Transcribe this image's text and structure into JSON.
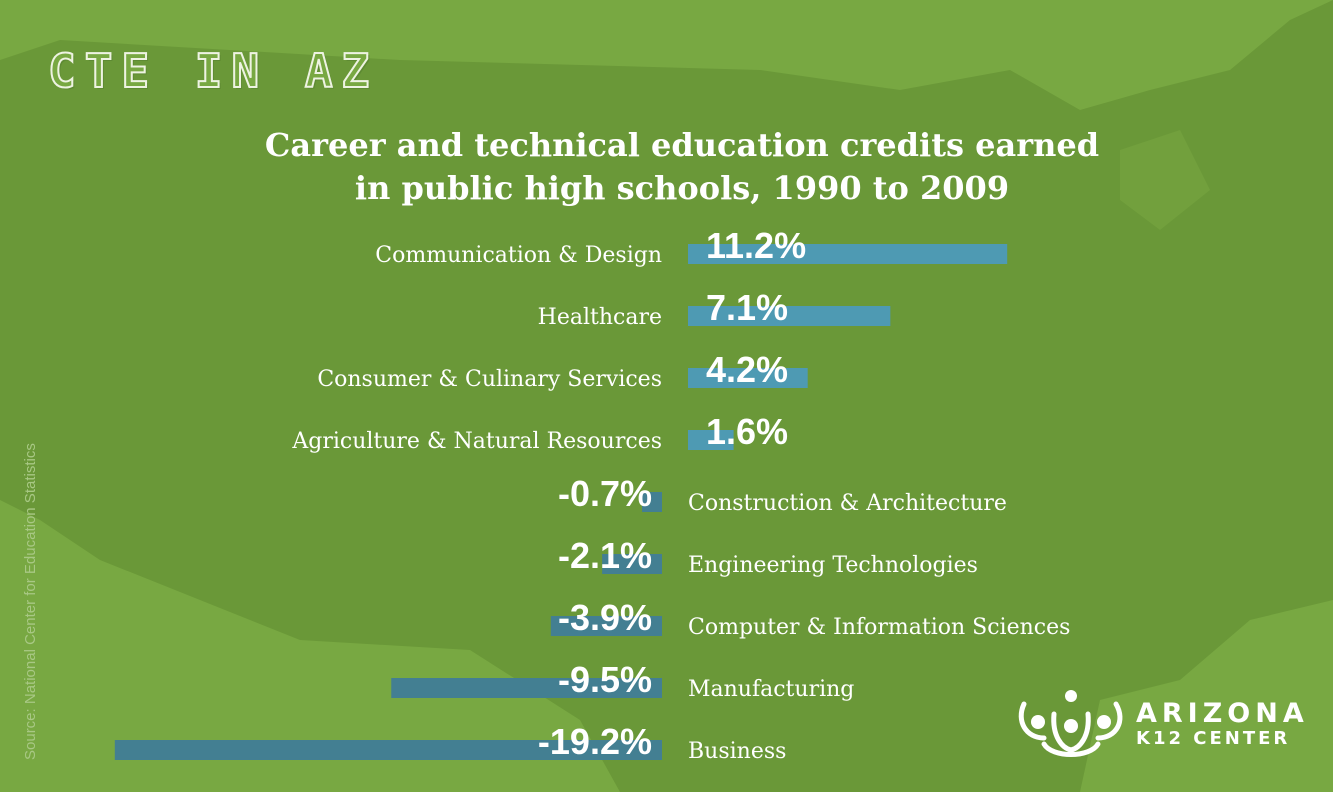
{
  "header": {
    "title": "CTE IN AZ"
  },
  "source_note": "Source: National Center for Education Statistics",
  "logo": {
    "line1": "ARIZONA",
    "line2": "K12 CENTER"
  },
  "colors": {
    "background": "#78a842",
    "map_shape": "#6a9838",
    "positive_bar": "#4e9ab3",
    "negative_bar": "#437f92",
    "text": "#ffffff"
  },
  "chart_data": {
    "type": "bar",
    "orientation": "horizontal",
    "title_lines": [
      "Career and technical education credits earned",
      "in public high schools, 1990 to 2009"
    ],
    "categories": [
      "Communication & Design",
      "Healthcare",
      "Consumer & Culinary Services",
      "Agriculture & Natural Resources",
      "Construction & Architecture",
      "Engineering Technologies",
      "Computer & Information Sciences",
      "Manufacturing",
      "Business"
    ],
    "values": [
      11.2,
      7.1,
      4.2,
      1.6,
      -0.7,
      -2.1,
      -3.9,
      -9.5,
      -19.2
    ],
    "value_labels": [
      "11.2%",
      "7.1%",
      "4.2%",
      "1.6%",
      "-0.7%",
      "-2.1%",
      "-3.9%",
      "-9.5%",
      "-19.2%"
    ],
    "unit": "%",
    "legend": "none",
    "grid": false
  }
}
